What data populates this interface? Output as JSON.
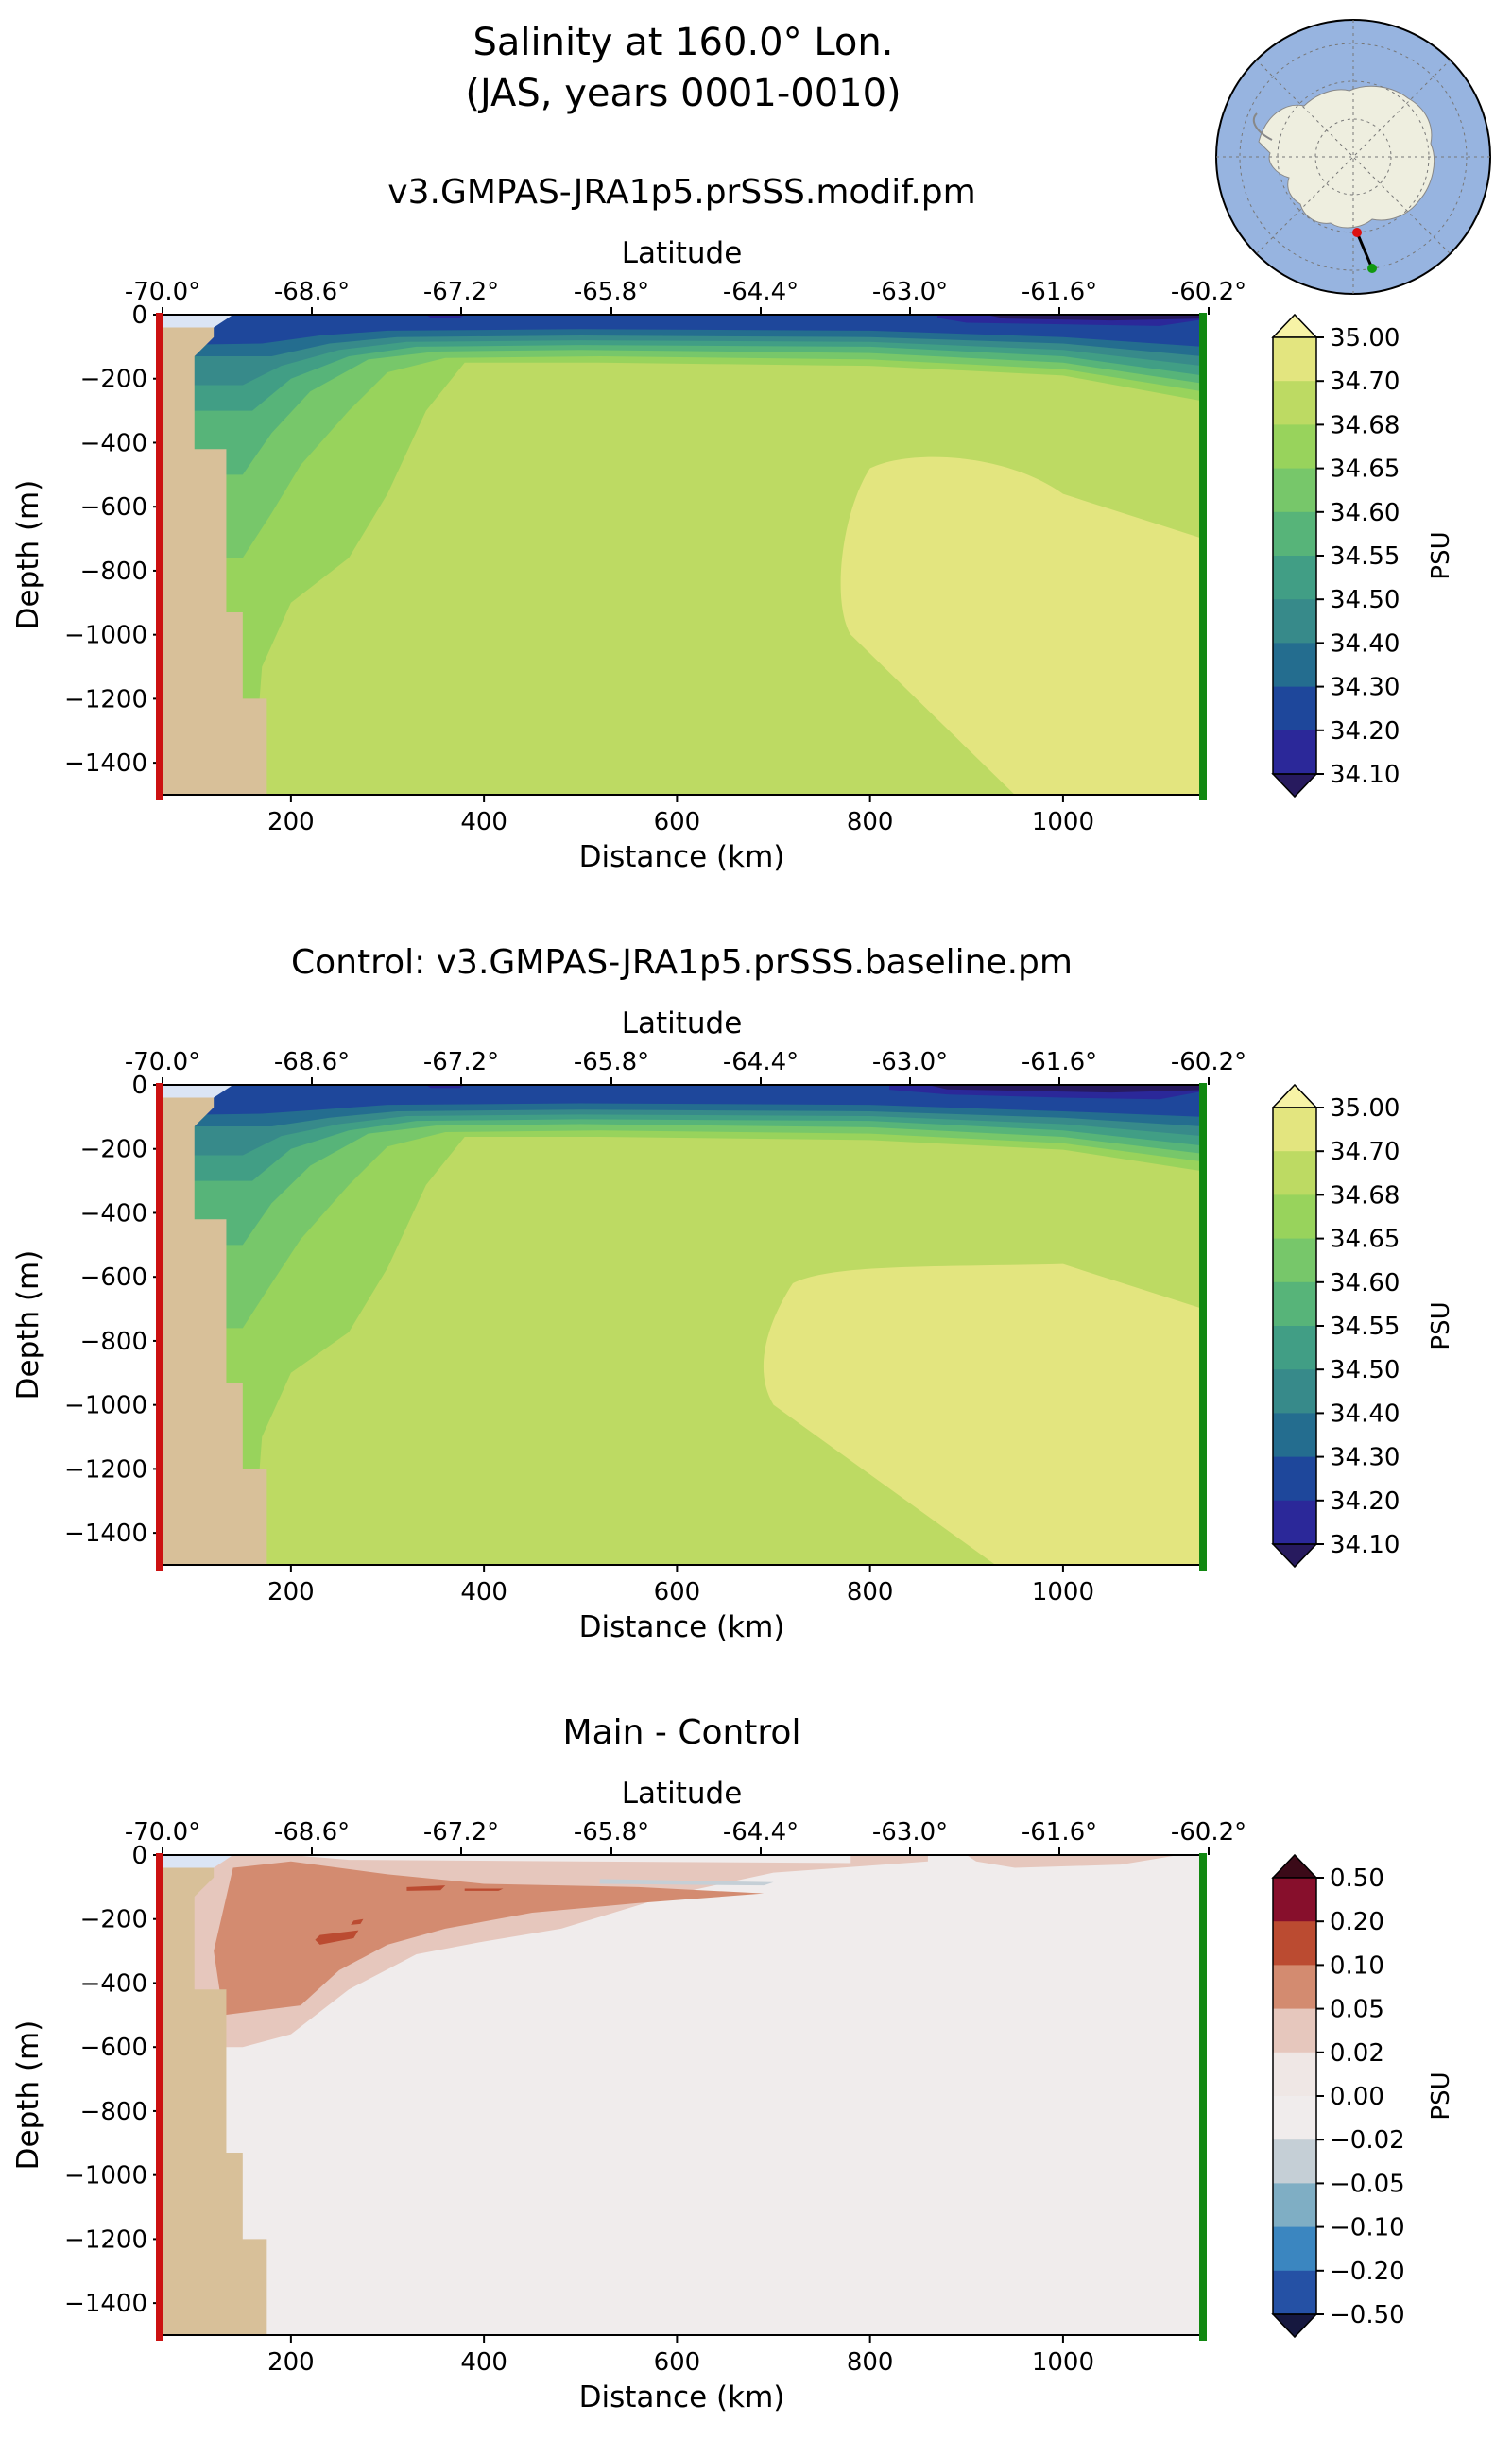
{
  "figure": {
    "title_line1": "Salinity at 160.0° Lon.",
    "title_line2": "(JAS, years 0001-0010)"
  },
  "colors": {
    "land": "#d8c099",
    "ocean_map": "#97b4e0",
    "antarctica": "#eeeedf",
    "start_marker": "#cc1111",
    "end_marker": "#118811",
    "shelf_water": "#dbe5f5"
  },
  "chart_data": [
    {
      "type": "contourf",
      "id": "modif",
      "title": "v3.GMPAS-JRA1p5.prSSS.modif.pm",
      "xlabel": "Distance (km)",
      "ylabel": "Depth (m)",
      "secondary_xlabel": "Latitude",
      "xlim": [
        65,
        1145
      ],
      "ylim": [
        -1500,
        0
      ],
      "x_ticks": [
        200,
        400,
        600,
        800,
        1000
      ],
      "y_ticks": [
        0,
        -200,
        -400,
        -600,
        -800,
        -1000,
        -1200,
        -1400
      ],
      "x_tick_labels": [
        "200",
        "400",
        "600",
        "800",
        "1000"
      ],
      "y_tick_labels": [
        "0",
        "−200",
        "−400",
        "−600",
        "−800",
        "−1000",
        "−1200",
        "−1400"
      ],
      "lat_tick_labels": [
        "-70.0°",
        "-68.6°",
        "-67.2°",
        "-65.8°",
        "-64.4°",
        "-63.0°",
        "-61.6°",
        "-60.2°"
      ],
      "colorbar_label": "PSU",
      "colorbar_ticks": [
        "35.00",
        "34.70",
        "34.68",
        "34.65",
        "34.60",
        "34.55",
        "34.50",
        "34.40",
        "34.30",
        "34.20",
        "34.10"
      ],
      "colorbar_colors": [
        "#e3e57f",
        "#bdda63",
        "#98d35c",
        "#77c76a",
        "#57b479",
        "#419e85",
        "#378a8a",
        "#246d8f",
        "#1e479b",
        "#2b2899"
      ],
      "extend_colors": [
        "#f7f3a6",
        "#271a5e"
      ],
      "fresh_interface_depth_range_m": [
        -100,
        -230
      ],
      "high_salinity_core": {
        "x_start_km": 800,
        "depth_top_m": -420,
        "x_bottom_km": 950,
        "value_range": "34.70-35.00"
      }
    },
    {
      "type": "contourf",
      "id": "baseline",
      "title": "Control: v3.GMPAS-JRA1p5.prSSS.baseline.pm",
      "xlabel": "Distance (km)",
      "ylabel": "Depth (m)",
      "secondary_xlabel": "Latitude",
      "xlim": [
        65,
        1145
      ],
      "ylim": [
        -1500,
        0
      ],
      "x_ticks": [
        200,
        400,
        600,
        800,
        1000
      ],
      "y_ticks": [
        0,
        -200,
        -400,
        -600,
        -800,
        -1000,
        -1200,
        -1400
      ],
      "x_tick_labels": [
        "200",
        "400",
        "600",
        "800",
        "1000"
      ],
      "y_tick_labels": [
        "0",
        "−200",
        "−400",
        "−600",
        "−800",
        "−1000",
        "−1200",
        "−1400"
      ],
      "lat_tick_labels": [
        "-70.0°",
        "-68.6°",
        "-67.2°",
        "-65.8°",
        "-64.4°",
        "-63.0°",
        "-61.6°",
        "-60.2°"
      ],
      "colorbar_label": "PSU",
      "colorbar_ticks": [
        "35.00",
        "34.70",
        "34.68",
        "34.65",
        "34.60",
        "34.55",
        "34.50",
        "34.40",
        "34.30",
        "34.20",
        "34.10"
      ],
      "colorbar_colors": [
        "#e3e57f",
        "#bdda63",
        "#98d35c",
        "#77c76a",
        "#57b479",
        "#419e85",
        "#378a8a",
        "#246d8f",
        "#1e479b",
        "#2b2899"
      ],
      "extend_colors": [
        "#f7f3a6",
        "#271a5e"
      ],
      "fresh_interface_depth_range_m": [
        -120,
        -260
      ],
      "high_salinity_core": {
        "x_start_km": 720,
        "depth_top_m": -560,
        "x_bottom_km": 930,
        "value_range": "34.70-35.00"
      }
    },
    {
      "type": "contourf",
      "id": "difference",
      "title": "Main - Control",
      "xlabel": "Distance (km)",
      "ylabel": "Depth (m)",
      "secondary_xlabel": "Latitude",
      "xlim": [
        65,
        1145
      ],
      "ylim": [
        -1500,
        0
      ],
      "x_ticks": [
        200,
        400,
        600,
        800,
        1000
      ],
      "y_ticks": [
        0,
        -200,
        -400,
        -600,
        -800,
        -1000,
        -1200,
        -1400
      ],
      "x_tick_labels": [
        "200",
        "400",
        "600",
        "800",
        "1000"
      ],
      "y_tick_labels": [
        "0",
        "−200",
        "−400",
        "−600",
        "−800",
        "−1000",
        "−1200",
        "−1400"
      ],
      "lat_tick_labels": [
        "-70.0°",
        "-68.6°",
        "-67.2°",
        "-65.8°",
        "-64.4°",
        "-63.0°",
        "-61.6°",
        "-60.2°"
      ],
      "colorbar_label": "PSU",
      "colorbar_ticks": [
        "0.50",
        "0.20",
        "0.10",
        "0.05",
        "0.02",
        "0.00",
        "−0.02",
        "−0.05",
        "−0.10",
        "−0.20",
        "−0.50"
      ],
      "colorbar_colors": [
        "#870f2c",
        "#bb4b31",
        "#d38b70",
        "#e6c7bd",
        "#efe7e5",
        "#f0ecec",
        "#c5cfd6",
        "#7faec4",
        "#3b86c0",
        "#2551a5"
      ],
      "extend_colors": [
        "#3b0a18",
        "#16183f"
      ],
      "positive_anomaly_core": {
        "x_range_km": [
          130,
          700
        ],
        "depth_range_m": [
          -40,
          -500
        ],
        "max_value_range": "0.10-0.20"
      }
    }
  ]
}
